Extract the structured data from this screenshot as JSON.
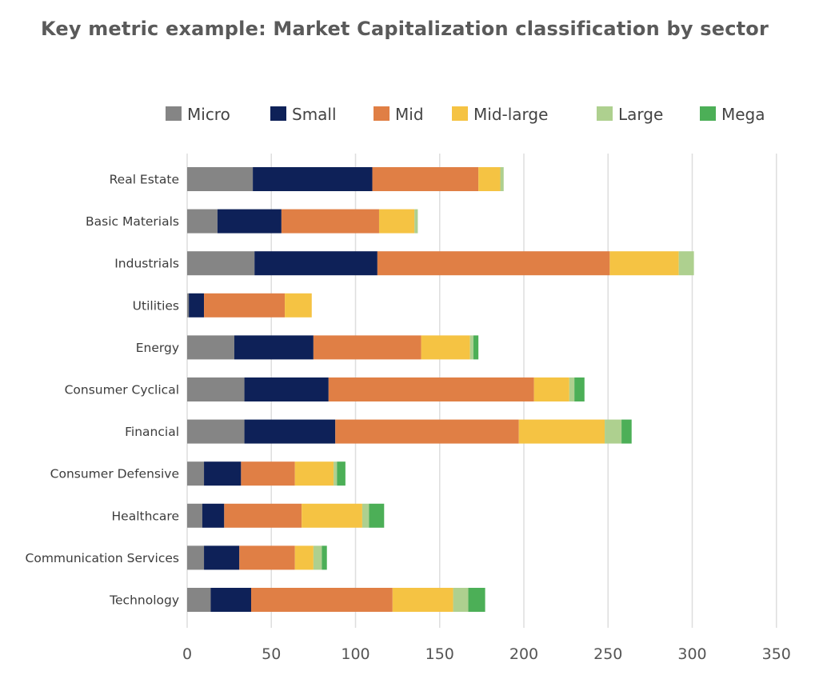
{
  "chart_data": {
    "type": "bar",
    "orientation": "horizontal",
    "stacked": true,
    "title": "Key metric example: Market Capitalization classification by sector",
    "xlabel": "",
    "ylabel": "",
    "xlim": [
      0,
      350
    ],
    "xticks": [
      0,
      50,
      100,
      150,
      200,
      250,
      300,
      350
    ],
    "grid": true,
    "legend_position": "top",
    "categories": [
      "Real Estate",
      "Basic Materials",
      "Industrials",
      "Utilities",
      "Energy",
      "Consumer Cyclical",
      "Financial",
      "Consumer Defensive",
      "Healthcare",
      "Communication Services",
      "Technology"
    ],
    "series": [
      {
        "name": "Micro",
        "color": "#858585",
        "values": [
          39,
          18,
          40,
          1,
          28,
          34,
          34,
          10,
          9,
          10,
          14
        ]
      },
      {
        "name": "Small",
        "color": "#0e2158",
        "values": [
          71,
          38,
          73,
          9,
          47,
          50,
          54,
          22,
          13,
          21,
          24
        ]
      },
      {
        "name": "Mid",
        "color": "#e07f45",
        "values": [
          63,
          58,
          138,
          48,
          64,
          122,
          109,
          32,
          46,
          33,
          84
        ]
      },
      {
        "name": "Mid-large",
        "color": "#f5c343",
        "values": [
          13,
          21,
          41,
          16,
          29,
          21,
          51,
          23,
          36,
          11,
          36
        ]
      },
      {
        "name": "Large",
        "color": "#aed08f",
        "values": [
          2,
          2,
          9,
          0,
          2,
          3,
          10,
          2,
          4,
          5,
          9
        ]
      },
      {
        "name": "Mega",
        "color": "#4caf57",
        "values": [
          0,
          0,
          0,
          0,
          3,
          6,
          6,
          5,
          9,
          3,
          10
        ]
      }
    ]
  },
  "colors": {
    "grid": "#dedede",
    "title": "#5a5a5a"
  }
}
